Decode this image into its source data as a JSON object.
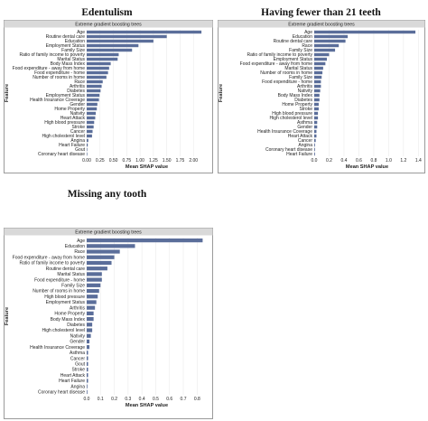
{
  "colors": {
    "bar": "#5b6e9a",
    "strip": "#d9d9d9",
    "grid": "#ebebeb"
  },
  "chart_data": [
    {
      "type": "bar",
      "orientation": "horizontal",
      "title": "Edentulism",
      "strip_label": "Extreme gradient boosting trees",
      "xlabel": "Mean SHAP value",
      "ylabel": "Feature",
      "xlim": [
        0,
        2.25
      ],
      "xticks": [
        "0.00",
        "0.25",
        "0.50",
        "0.75",
        "1.00",
        "1.25",
        "1.50",
        "1.75",
        "2.00"
      ],
      "xtick_values": [
        0,
        0.25,
        0.5,
        0.75,
        1.0,
        1.25,
        1.5,
        1.75,
        2.0
      ],
      "grid": true,
      "categories": [
        "Age",
        "Routine dental care",
        "Education",
        "Employment Status",
        "Family Size",
        "Ratio of family income to poverty",
        "Marital Status",
        "Body Mass Index",
        "Food expenditure - away from home",
        "Food expenditure - home",
        "Number of rooms in home",
        "Race",
        "Arthritis",
        "Diabetes",
        "Employment Status",
        "Health Insurance Coverage",
        "Gender",
        "Home Property",
        "Nativity",
        "Heart Attack",
        "High blood pressure",
        "Stroke",
        "Cancer",
        "High cholesterol level",
        "Angina",
        "Heart Failure",
        "Gout",
        "Coronary heart disease"
      ],
      "values": [
        2.15,
        1.5,
        1.25,
        0.97,
        0.85,
        0.6,
        0.58,
        0.45,
        0.42,
        0.4,
        0.37,
        0.3,
        0.28,
        0.26,
        0.24,
        0.23,
        0.2,
        0.19,
        0.17,
        0.16,
        0.14,
        0.13,
        0.11,
        0.1,
        0.03,
        0.02,
        0.01,
        0.01
      ]
    },
    {
      "type": "bar",
      "orientation": "horizontal",
      "title": "Having fewer than 21 teeth",
      "strip_label": "Extreme gradient boosting trees",
      "xlabel": "Mean SHAP value",
      "ylabel": "Feature",
      "xlim": [
        0,
        1.42
      ],
      "xticks": [
        "0.0",
        "0.2",
        "0.4",
        "0.6",
        "0.8",
        "1.0",
        "1.2",
        "1.4"
      ],
      "xtick_values": [
        0,
        0.2,
        0.4,
        0.6,
        0.8,
        1.0,
        1.2,
        1.4
      ],
      "grid": true,
      "categories": [
        "Age",
        "Education",
        "Routine dental care",
        "Race",
        "Family Size",
        "Ratio of family income to poverty",
        "Employment Status",
        "Food expenditure - away from home",
        "Marital Status",
        "Number of rooms in home",
        "Family Size",
        "Food expenditure - home",
        "Arthritis",
        "Nativity",
        "Body Mass Index",
        "Diabetes",
        "Home Property",
        "Stroke",
        "High blood pressure",
        "High cholesterol level",
        "Asthma",
        "Gender",
        "Health Insurance Coverage",
        "Heart Attack",
        "Cancer",
        "Angina",
        "Coronary heart disease",
        "Heart Failure"
      ],
      "values": [
        1.36,
        0.45,
        0.42,
        0.33,
        0.28,
        0.2,
        0.17,
        0.15,
        0.12,
        0.11,
        0.1,
        0.09,
        0.09,
        0.08,
        0.07,
        0.07,
        0.06,
        0.06,
        0.05,
        0.05,
        0.04,
        0.04,
        0.03,
        0.03,
        0.02,
        0.01,
        0.01,
        0.01
      ]
    },
    {
      "type": "bar",
      "orientation": "horizontal",
      "title": "Missing any tooth",
      "strip_label": "Extreme gradient boosting trees",
      "xlabel": "Mean SHAP value",
      "ylabel": "Feature",
      "xlim": [
        0,
        0.87
      ],
      "xticks": [
        "0.0",
        "0.1",
        "0.2",
        "0.3",
        "0.4",
        "0.5",
        "0.6",
        "0.7",
        "0.8"
      ],
      "xtick_values": [
        0,
        0.1,
        0.2,
        0.3,
        0.4,
        0.5,
        0.6,
        0.7,
        0.8
      ],
      "grid": true,
      "categories": [
        "Age",
        "Education",
        "Race",
        "Food expenditure - away from home",
        "Ratio of family income to poverty",
        "Routine dental care",
        "Marital Status",
        "Food expenditure - home",
        "Family Size",
        "Number of rooms in home",
        "High blood pressure",
        "Employment Status",
        "Arthritis",
        "Home Property",
        "Body Mass Index",
        "Diabetes",
        "High cholesterol level",
        "Nativity",
        "Gender",
        "Health Insurance Coverage",
        "Asthma",
        "Cancer",
        "Gout",
        "Stroke",
        "Heart Attack",
        "Heart Failure",
        "Angina",
        "Coronary heart disease"
      ],
      "values": [
        0.84,
        0.35,
        0.24,
        0.2,
        0.18,
        0.15,
        0.11,
        0.11,
        0.1,
        0.09,
        0.08,
        0.07,
        0.06,
        0.05,
        0.05,
        0.04,
        0.04,
        0.03,
        0.02,
        0.02,
        0.01,
        0.01,
        0.01,
        0.01,
        0.01,
        0.01,
        0.005,
        0.005
      ]
    }
  ]
}
